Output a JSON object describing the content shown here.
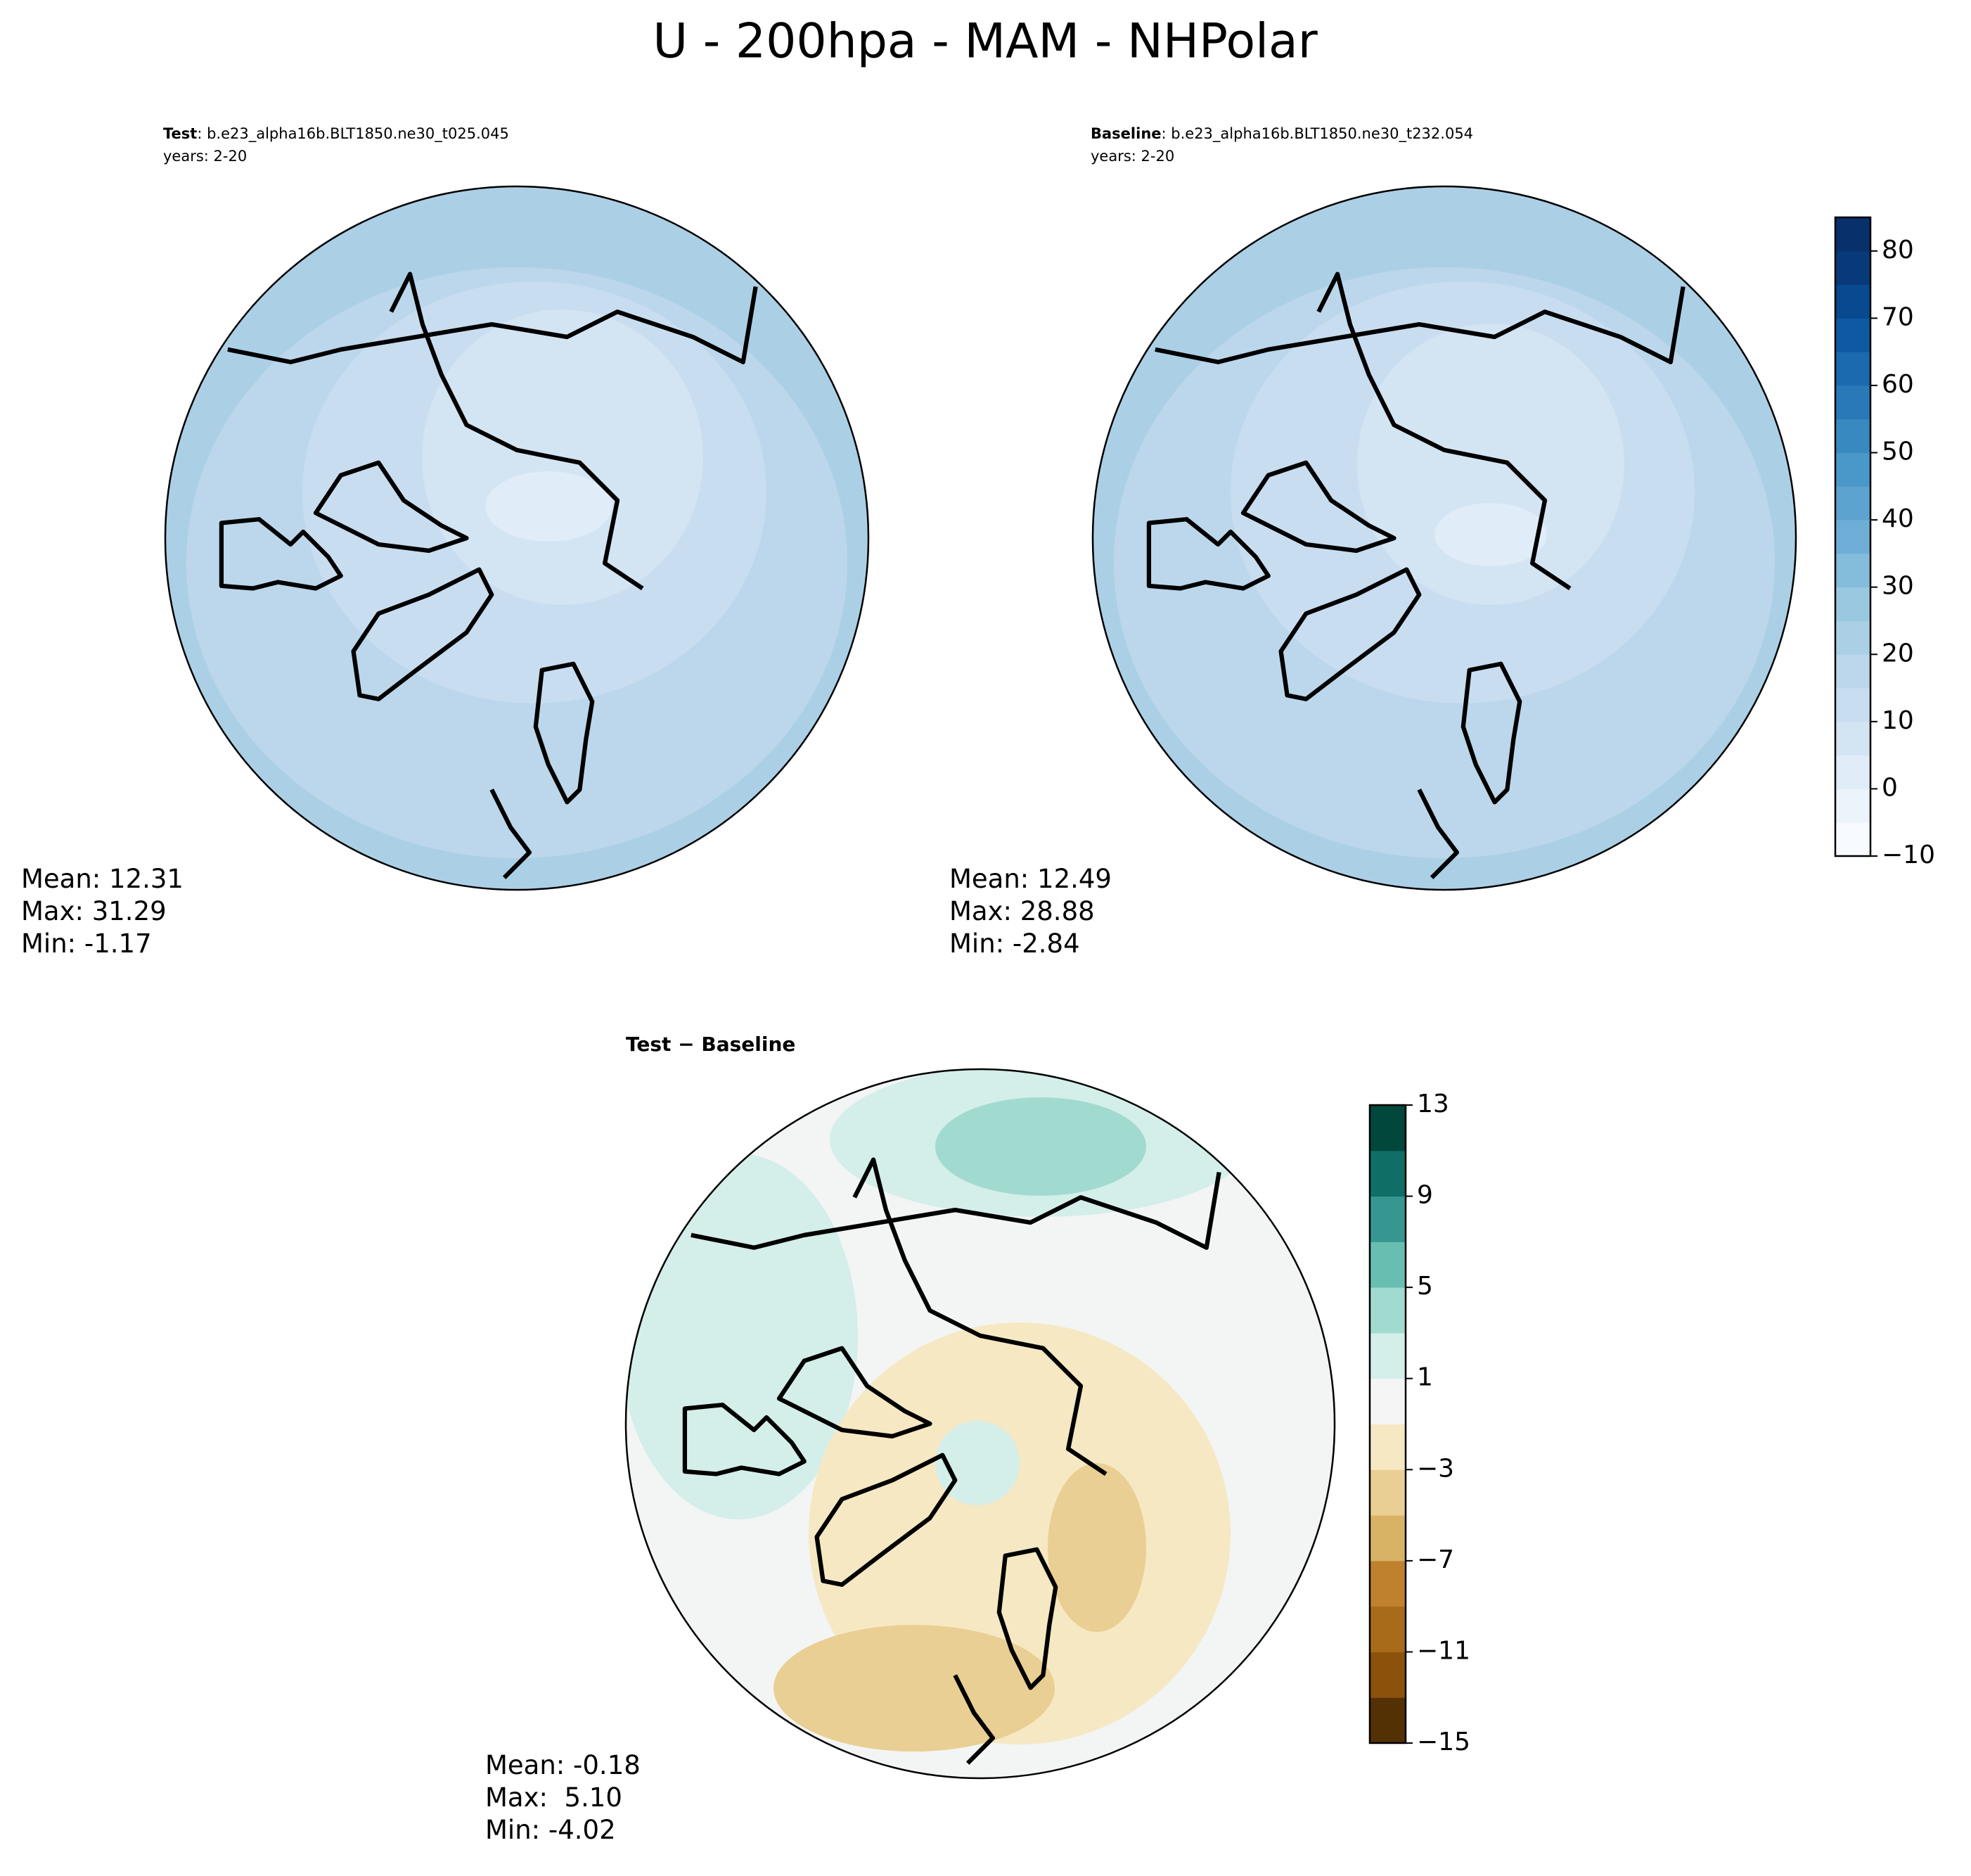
{
  "title": "U - 200hpa - MAM - NHPolar",
  "panels": [
    {
      "label": "Test",
      "case": ": b.e23_alpha16b.BLT1850.ne30_t025.045",
      "years": "years: 2-20",
      "stats": [
        "Mean: 12.31",
        "Max: 31.29",
        "Min: -1.17"
      ]
    },
    {
      "label": "Baseline",
      "case": ": b.e23_alpha16b.BLT1850.ne30_t232.054",
      "years": "years: 2-20",
      "stats": [
        "Mean: 12.49",
        "Max: 28.88",
        "Min: -2.84"
      ]
    }
  ],
  "diff": {
    "title": "Test − Baseline",
    "stats": [
      "Mean: -0.18",
      "Max:  5.10",
      "Min: -4.02"
    ]
  },
  "colorbars": [
    {
      "lim": [
        -10,
        85
      ],
      "colors": [
        "#f7fbff",
        "#ebf3fb",
        "#e0ecf8",
        "#d3e4f3",
        "#c9ddf0",
        "#bcd7eb",
        "#abd0e6",
        "#9ac8e0",
        "#84bcdb",
        "#6eaed6",
        "#5da3d0",
        "#4a98c9",
        "#3989c1",
        "#2979b9",
        "#1b69af",
        "#0e59a2",
        "#084990",
        "#083a7a",
        "#08306b"
      ],
      "ticks": [
        {
          "value": -10,
          "label": "−10"
        },
        0,
        10,
        20,
        30,
        40,
        50,
        60,
        70,
        80
      ]
    },
    {
      "lim": [
        -15,
        13
      ],
      "colors": [
        "#543005",
        "#8c510a",
        "#a86b1a",
        "#bf812d",
        "#d9b365",
        "#e9cf93",
        "#f6e8c3",
        "#f5f5f5",
        "#d4eeea",
        "#a1dbd0",
        "#68bfb1",
        "#35978f",
        "#0f6f66",
        "#01473c"
      ],
      "ticks": [
        {
          "value": -15,
          "label": "−15"
        },
        {
          "value": -11,
          "label": "−11"
        },
        {
          "value": -7,
          "label": "−7"
        },
        {
          "value": -3,
          "label": "−3"
        },
        1,
        5,
        9,
        13
      ]
    }
  ]
}
